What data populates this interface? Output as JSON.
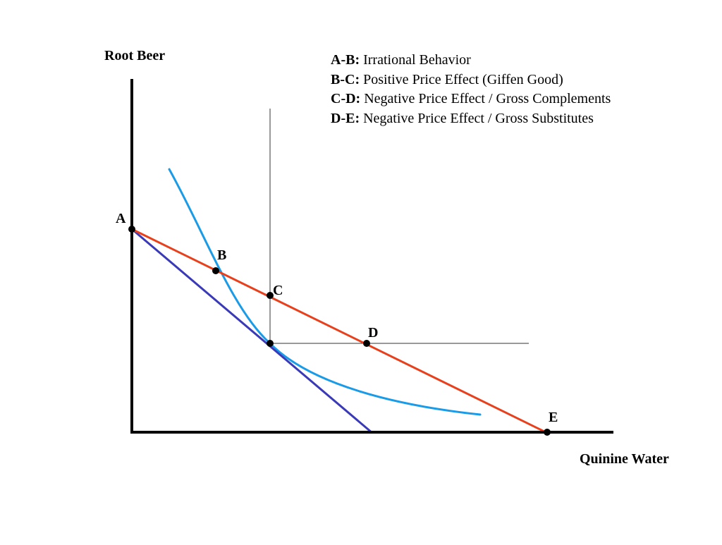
{
  "axes": {
    "y_label": "Root Beer",
    "x_label": "Quinine Water"
  },
  "legend": [
    {
      "key": "A-B:",
      "text": "Irrational Behavior"
    },
    {
      "key": "B-C:",
      "text": "Positive Price Effect (Giffen Good)"
    },
    {
      "key": "C-D:",
      "text": "Negative Price Effect / Gross Complements"
    },
    {
      "key": "D-E:",
      "text": "Negative Price Effect / Gross Substitutes"
    }
  ],
  "points": {
    "A": "A",
    "B": "B",
    "C": "C",
    "D": "D",
    "E": "E"
  },
  "colors": {
    "axis": "#000000",
    "new_budget_line": "#e8401c",
    "original_budget_line": "#3a3ab8",
    "indifference_curve": "#1a9be8",
    "guide_lines": "#333333",
    "points": "#000000"
  }
}
